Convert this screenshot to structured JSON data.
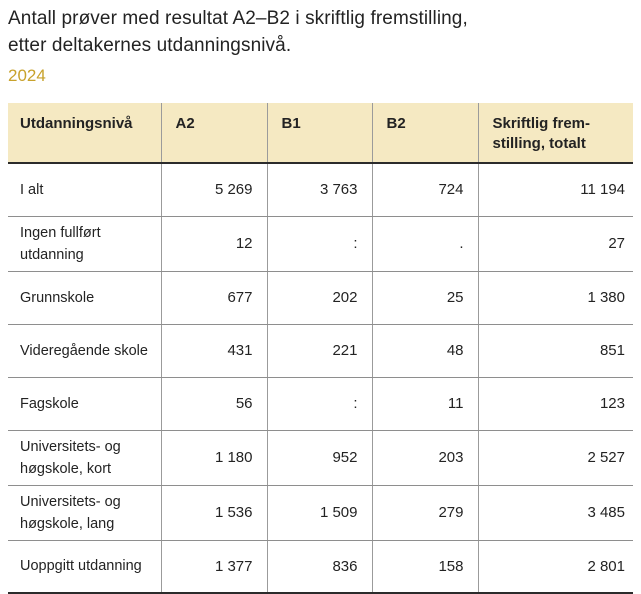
{
  "page": {
    "title_line1": "Antall prøver med resultat A2–B2 i skriftlig fremstilling,",
    "title_line2": "etter deltakernes utdanningsnivå.",
    "year": "2024"
  },
  "colors": {
    "year_accent": "#C8A22C",
    "header_background": "#F5E9C2",
    "text": "#232323",
    "strong_rule": "#2B2B2B",
    "light_rule": "#8E8E8E",
    "column_divider": "#9B9B9B"
  },
  "chart_data": {
    "type": "table",
    "title": "Antall prøver med resultat A2–B2 i skriftlig fremstilling, etter deltakernes utdanningsnivå.",
    "subtitle": "2024",
    "columns": [
      "Utdanningsnivå",
      "A2",
      "B1",
      "B2",
      "Skriftlig frem-\nstilling, totalt"
    ],
    "rows": [
      {
        "label": "I alt",
        "values": [
          "5 269",
          "3 763",
          "724",
          "11 194"
        ]
      },
      {
        "label": "Ingen fullført utdanning",
        "values": [
          "12",
          ":",
          ".",
          "27"
        ]
      },
      {
        "label": "Grunnskole",
        "values": [
          "677",
          "202",
          "25",
          "1 380"
        ]
      },
      {
        "label": "Videregående skole",
        "values": [
          "431",
          "221",
          "48",
          "851"
        ]
      },
      {
        "label": "Fagskole",
        "values": [
          "56",
          ":",
          "11",
          "123"
        ]
      },
      {
        "label": "Universitets- og høgskole, kort",
        "values": [
          "1 180",
          "952",
          "203",
          "2 527"
        ]
      },
      {
        "label": "Universitets- og høgskole, lang",
        "values": [
          "1 536",
          "1 509",
          "279",
          "3 485"
        ]
      },
      {
        "label": "Uoppgitt utdanning",
        "values": [
          "1 377",
          "836",
          "158",
          "2 801"
        ]
      }
    ]
  }
}
